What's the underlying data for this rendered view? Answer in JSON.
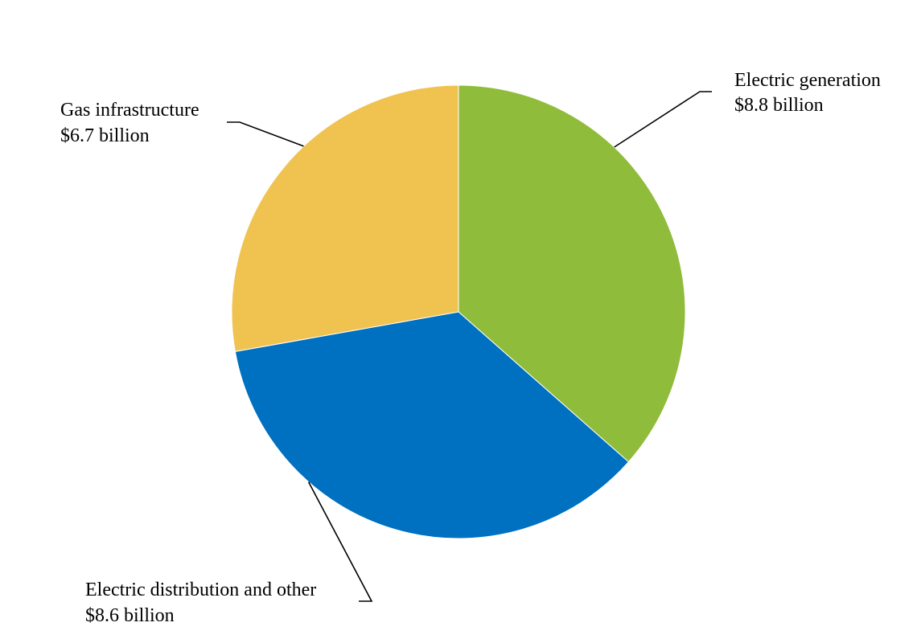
{
  "chart_data": {
    "type": "pie",
    "start_angle": "12 o'clock",
    "direction": "clockwise",
    "slices": [
      {
        "label": "Electric generation",
        "value_label": "$8.8 billion",
        "value": 8.8,
        "color": "#8fbc3a"
      },
      {
        "label": "Electric distribution and other",
        "value_label": "$8.6 billion",
        "value": 8.6,
        "color": "#0070c0"
      },
      {
        "label": "Gas infrastructure",
        "value_label": "$6.7 billion",
        "value": 6.7,
        "color": "#f0c350"
      }
    ]
  }
}
